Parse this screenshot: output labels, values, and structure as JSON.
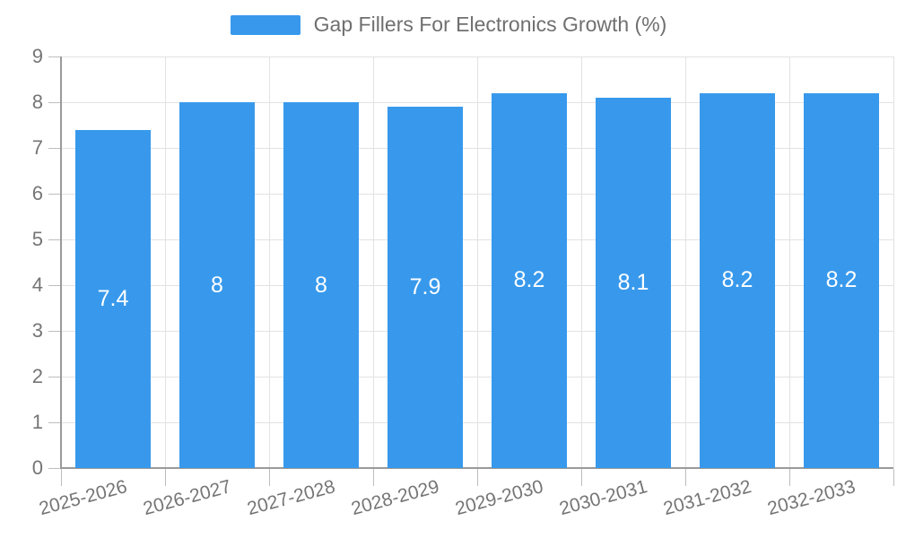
{
  "legend": {
    "label": "Gap Fillers For Electronics Growth (%)"
  },
  "chart_data": {
    "type": "bar",
    "title": "Gap Fillers For Electronics Growth (%)",
    "categories": [
      "2025-2026",
      "2026-2027",
      "2027-2028",
      "2028-2029",
      "2029-2030",
      "2030-2031",
      "2031-2032",
      "2032-2033"
    ],
    "values": [
      7.4,
      8,
      8,
      7.9,
      8.2,
      8.1,
      8.2,
      8.2
    ],
    "bar_labels": [
      "7.4",
      "8",
      "8",
      "7.9",
      "8.2",
      "8.1",
      "8.2",
      "8.2"
    ],
    "xlabel": "",
    "ylabel": "",
    "ylim": [
      0,
      9
    ],
    "y_ticks": [
      "0",
      "1",
      "2",
      "3",
      "4",
      "5",
      "6",
      "7",
      "8",
      "9"
    ],
    "grid": true,
    "legend_position": "top",
    "colors": {
      "bar": "#3899ec",
      "bar_label": "#ffffff",
      "axis_line": "#9a9a9a",
      "grid_line": "#e2e2e2",
      "tick_line": "#bdbdbd",
      "axis_label": "#757575",
      "title": "#6f6f6f"
    }
  }
}
